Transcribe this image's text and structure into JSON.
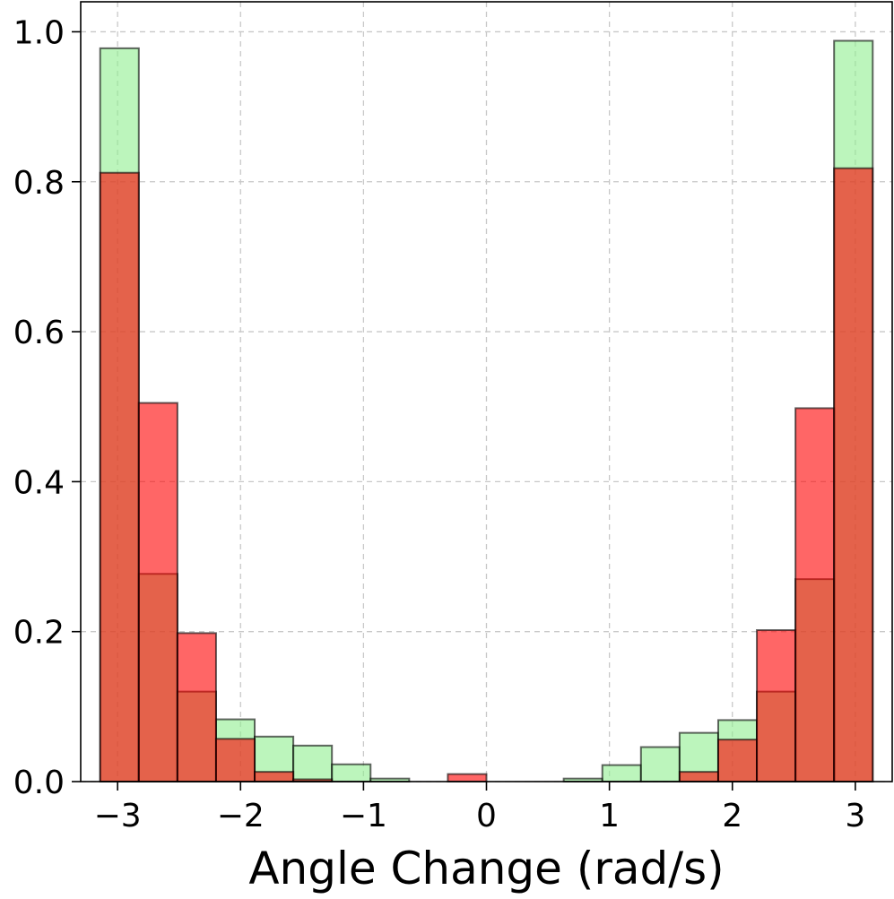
{
  "chart_data": {
    "type": "bar",
    "title": "",
    "xlabel": "Angle Change (rad/s)",
    "ylabel": "",
    "xlim": [
      -3.3,
      3.3
    ],
    "ylim": [
      0.0,
      1.04
    ],
    "grid": true,
    "legend": "none",
    "bin_edges": [
      -3.1416,
      -2.8274,
      -2.5133,
      -2.1991,
      -1.885,
      -1.5708,
      -1.2566,
      -0.9425,
      -0.6283,
      -0.3142,
      0.0,
      0.3142,
      0.6283,
      0.9425,
      1.2566,
      1.5708,
      1.885,
      2.1991,
      2.5133,
      2.8274,
      3.1416
    ],
    "x_ticks": [
      -3,
      -2,
      -1,
      0,
      1,
      2,
      3
    ],
    "x_tick_labels": [
      "−3",
      "−2",
      "−1",
      "0",
      "1",
      "2",
      "3"
    ],
    "y_ticks": [
      0.0,
      0.2,
      0.4,
      0.6,
      0.8,
      1.0
    ],
    "y_tick_labels": [
      "0.0",
      "0.2",
      "0.4",
      "0.6",
      "0.8",
      "1.0"
    ],
    "series": [
      {
        "color": "#90ee90",
        "opacity": 0.6,
        "values": [
          0.978,
          0.277,
          0.12,
          0.083,
          0.06,
          0.048,
          0.023,
          0.004,
          0.0,
          0.0,
          0.0,
          0.0,
          0.004,
          0.022,
          0.046,
          0.065,
          0.082,
          0.12,
          0.27,
          0.988
        ]
      },
      {
        "color": "#ff0000",
        "opacity": 0.6,
        "values": [
          0.812,
          0.505,
          0.198,
          0.057,
          0.013,
          0.003,
          0.0,
          0.0,
          0.0,
          0.01,
          0.0,
          0.0,
          0.0,
          0.0,
          0.0,
          0.013,
          0.056,
          0.202,
          0.498,
          0.818
        ]
      }
    ]
  }
}
